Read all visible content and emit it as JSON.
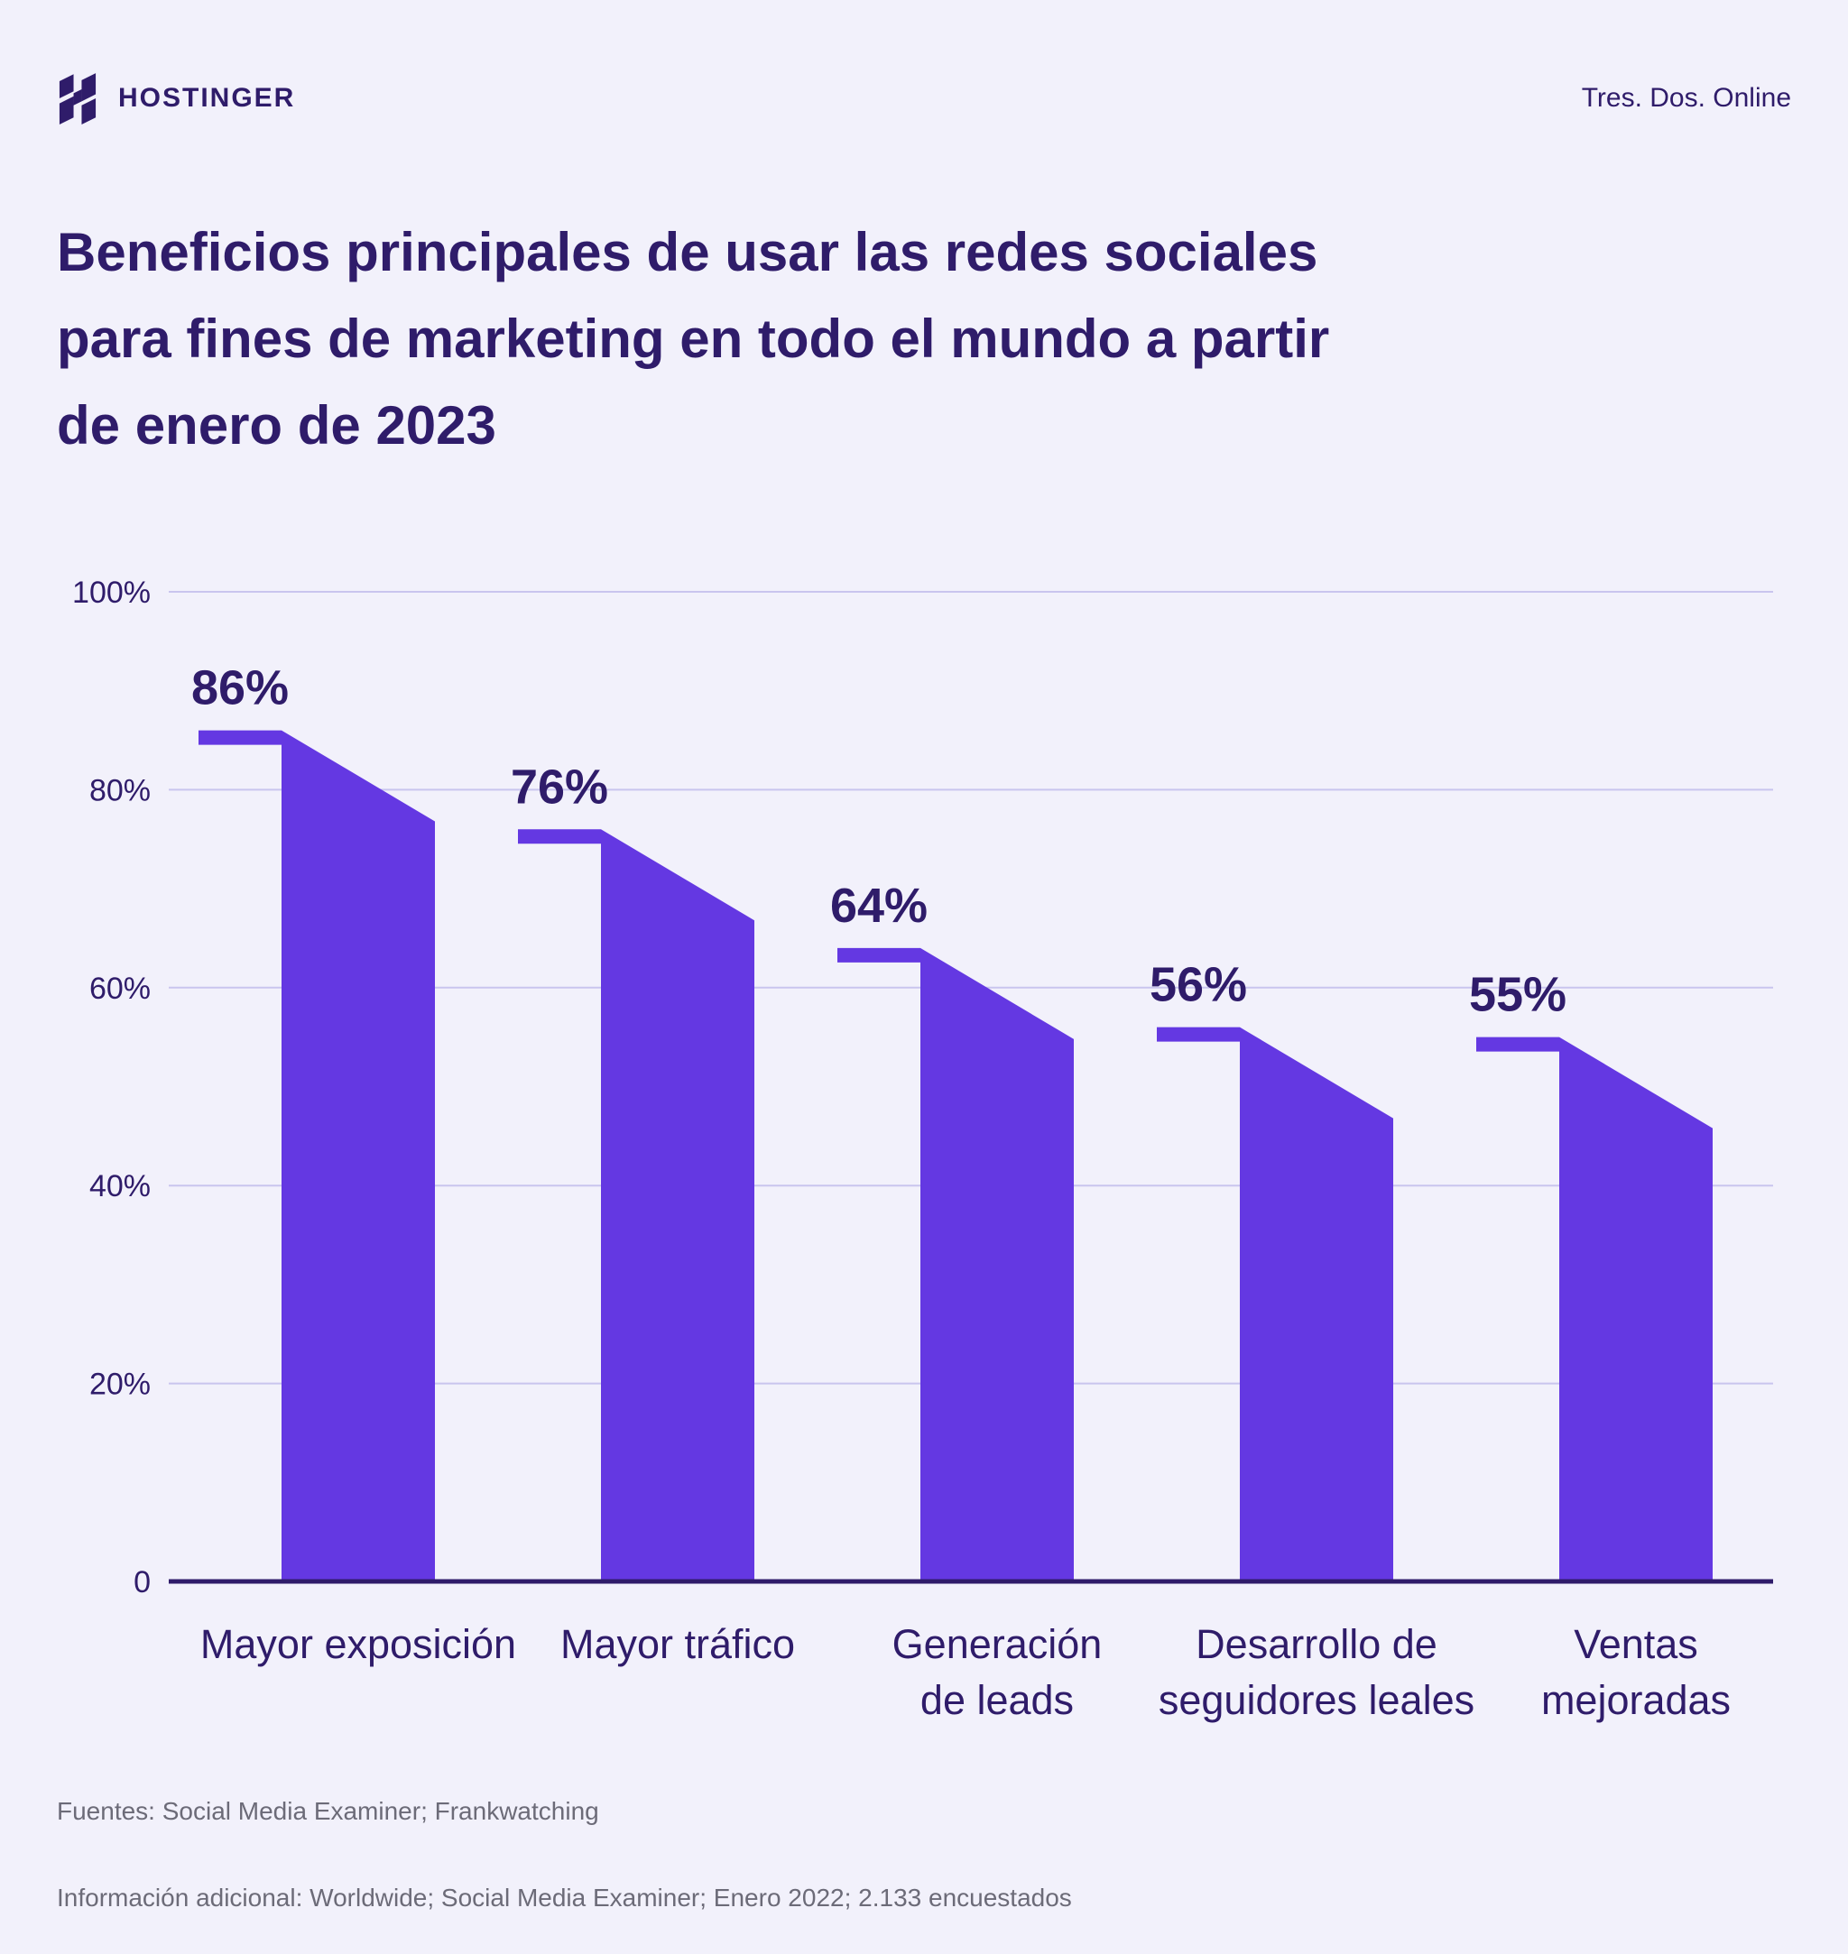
{
  "header": {
    "brand": "HOSTINGER",
    "tagline": "Tres. Dos. Online"
  },
  "title": "Beneficios principales de usar las redes sociales para fines de marketing en todo el mundo a partir de enero de 2023",
  "title_lines": [
    "Beneficios principales de usar las redes sociales",
    "para fines de marketing en todo el mundo a partir",
    "de enero de 2023"
  ],
  "chart_data": {
    "type": "bar",
    "title": "Beneficios principales de usar las redes sociales para fines de marketing en todo el mundo a partir de enero de 2023",
    "categories": [
      "Mayor exposición",
      "Mayor tráfico",
      "Generación de leads",
      "Desarrollo de seguidores leales",
      "Ventas mejoradas"
    ],
    "category_lines": [
      [
        "Mayor exposición"
      ],
      [
        "Mayor tráfico"
      ],
      [
        "Generación",
        "de leads"
      ],
      [
        "Desarrollo de",
        "seguidores leales"
      ],
      [
        "Ventas",
        "mejoradas"
      ]
    ],
    "values": [
      86,
      76,
      64,
      56,
      55
    ],
    "value_labels": [
      "86%",
      "76%",
      "64%",
      "56%",
      "55%"
    ],
    "xlabel": "",
    "ylabel": "",
    "ylim": [
      0,
      100
    ],
    "grid": true,
    "legend": false,
    "y_ticks": [
      {
        "value": 100,
        "label": "100%"
      },
      {
        "value": 80,
        "label": "80%"
      },
      {
        "value": 60,
        "label": "60%"
      },
      {
        "value": 40,
        "label": "40%"
      },
      {
        "value": 20,
        "label": "20%"
      },
      {
        "value": 0,
        "label": "0"
      }
    ]
  },
  "footer": {
    "sources": "Fuentes: Social Media Examiner; Frankwatching",
    "info": "Información adicional: Worldwide; Social Media Examiner; Enero 2022; 2.133 encuestados"
  },
  "colors": {
    "background": "#F2F1FB",
    "bar": "#6438E2",
    "dark_text": "#2F1C6A",
    "gridline": "#C9C5EE",
    "axis_line": "#2F1C6A",
    "footer_text": "#6C6B78",
    "logo": "#2F1C6A"
  }
}
